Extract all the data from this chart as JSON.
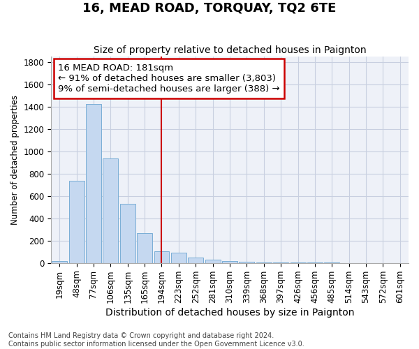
{
  "title": "16, MEAD ROAD, TORQUAY, TQ2 6TE",
  "subtitle": "Size of property relative to detached houses in Paignton",
  "xlabel": "Distribution of detached houses by size in Paignton",
  "ylabel": "Number of detached properties",
  "bin_labels": [
    "19sqm",
    "48sqm",
    "77sqm",
    "106sqm",
    "135sqm",
    "165sqm",
    "194sqm",
    "223sqm",
    "252sqm",
    "281sqm",
    "310sqm",
    "339sqm",
    "368sqm",
    "397sqm",
    "426sqm",
    "456sqm",
    "485sqm",
    "514sqm",
    "543sqm",
    "572sqm",
    "601sqm"
  ],
  "values": [
    20,
    735,
    1420,
    935,
    530,
    265,
    105,
    93,
    50,
    28,
    15,
    8,
    5,
    4,
    3,
    2,
    2,
    1,
    1,
    1,
    1
  ],
  "bar_color": "#c5d8f0",
  "bar_edge_color": "#7aaed6",
  "grid_color": "#c8cfe0",
  "vline_x": 6.0,
  "vline_color": "#cc0000",
  "annotation_text": "16 MEAD ROAD: 181sqm\n← 91% of detached houses are smaller (3,803)\n9% of semi-detached houses are larger (388) →",
  "annotation_box_color": "#cc0000",
  "ylim": [
    0,
    1850
  ],
  "yticks": [
    0,
    200,
    400,
    600,
    800,
    1000,
    1200,
    1400,
    1600,
    1800
  ],
  "footer_line1": "Contains HM Land Registry data © Crown copyright and database right 2024.",
  "footer_line2": "Contains public sector information licensed under the Open Government Licence v3.0.",
  "bg_color": "#ffffff",
  "plot_bg_color": "#eef1f8",
  "title_fontsize": 13,
  "subtitle_fontsize": 10,
  "tick_fontsize": 8.5,
  "ylabel_fontsize": 8.5,
  "xlabel_fontsize": 10,
  "footer_fontsize": 7,
  "annot_fontsize": 9.5
}
